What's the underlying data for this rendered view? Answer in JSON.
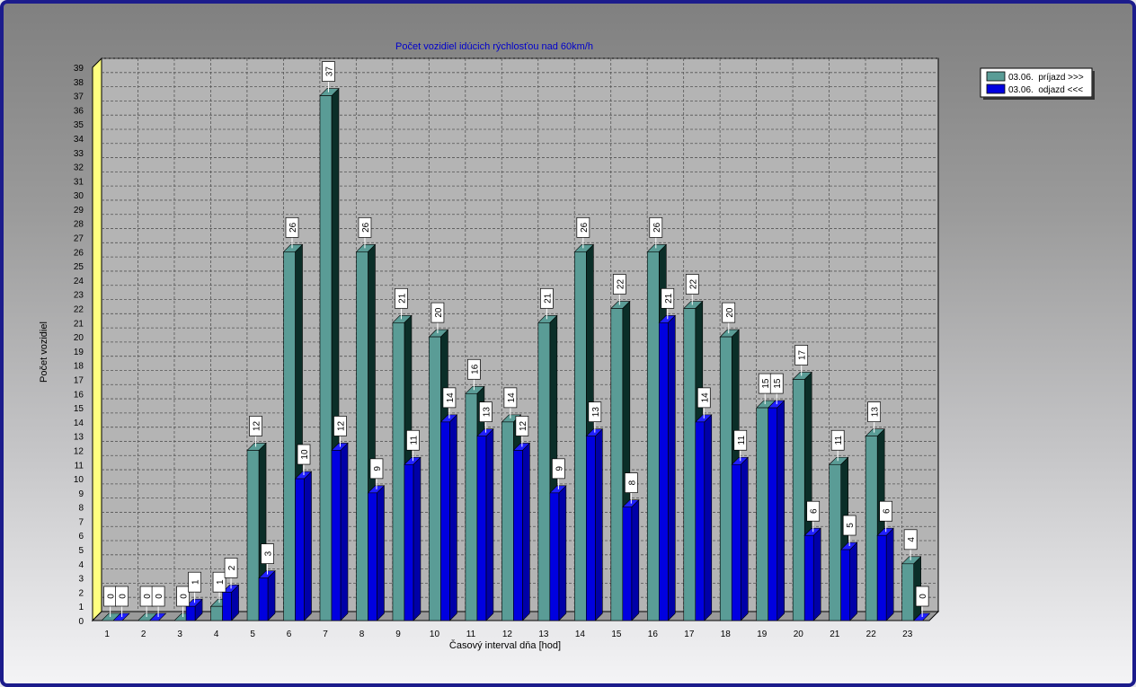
{
  "chart_data": {
    "type": "bar",
    "title": "Počet vozidiel idúcich rýchlosťou nad 60km/h",
    "xlabel": "Časový interval dňa [hod]",
    "ylabel": "Počet vozidiel",
    "ylim": [
      0,
      39
    ],
    "yticks": [
      "0",
      "1",
      "2",
      "3",
      "4",
      "5",
      "6",
      "7",
      "8",
      "9",
      "10",
      "11",
      "12",
      "13",
      "14",
      "15",
      "16",
      "17",
      "18",
      "19",
      "20",
      "21",
      "22",
      "23",
      "24",
      "25",
      "26",
      "27",
      "28",
      "29",
      "30",
      "31",
      "32",
      "33",
      "34",
      "35",
      "36",
      "37",
      "38",
      "39"
    ],
    "categories": [
      "1",
      "2",
      "3",
      "4",
      "5",
      "6",
      "7",
      "8",
      "9",
      "10",
      "11",
      "12",
      "13",
      "14",
      "15",
      "16",
      "17",
      "18",
      "19",
      "20",
      "21",
      "22",
      "23"
    ],
    "grid": true,
    "legend_position": "top-right",
    "series": [
      {
        "name": "03.06.  príjazd >>>",
        "color": "#5a9c96",
        "values": [
          0,
          0,
          0,
          1,
          12,
          26,
          37,
          26,
          21,
          20,
          16,
          14,
          21,
          26,
          22,
          26,
          22,
          20,
          15,
          17,
          11,
          13,
          4
        ]
      },
      {
        "name": "03.06.  odjazd <<<",
        "color": "#0000e0",
        "values": [
          0,
          0,
          1,
          2,
          3,
          10,
          12,
          9,
          11,
          14,
          13,
          12,
          9,
          13,
          8,
          21,
          14,
          11,
          15,
          6,
          5,
          6,
          0
        ]
      }
    ],
    "colors": {
      "title": "#0000cc",
      "wall": "#ffff80",
      "dark_face": "#0b2e28",
      "frame": "#1c1c8c"
    }
  }
}
